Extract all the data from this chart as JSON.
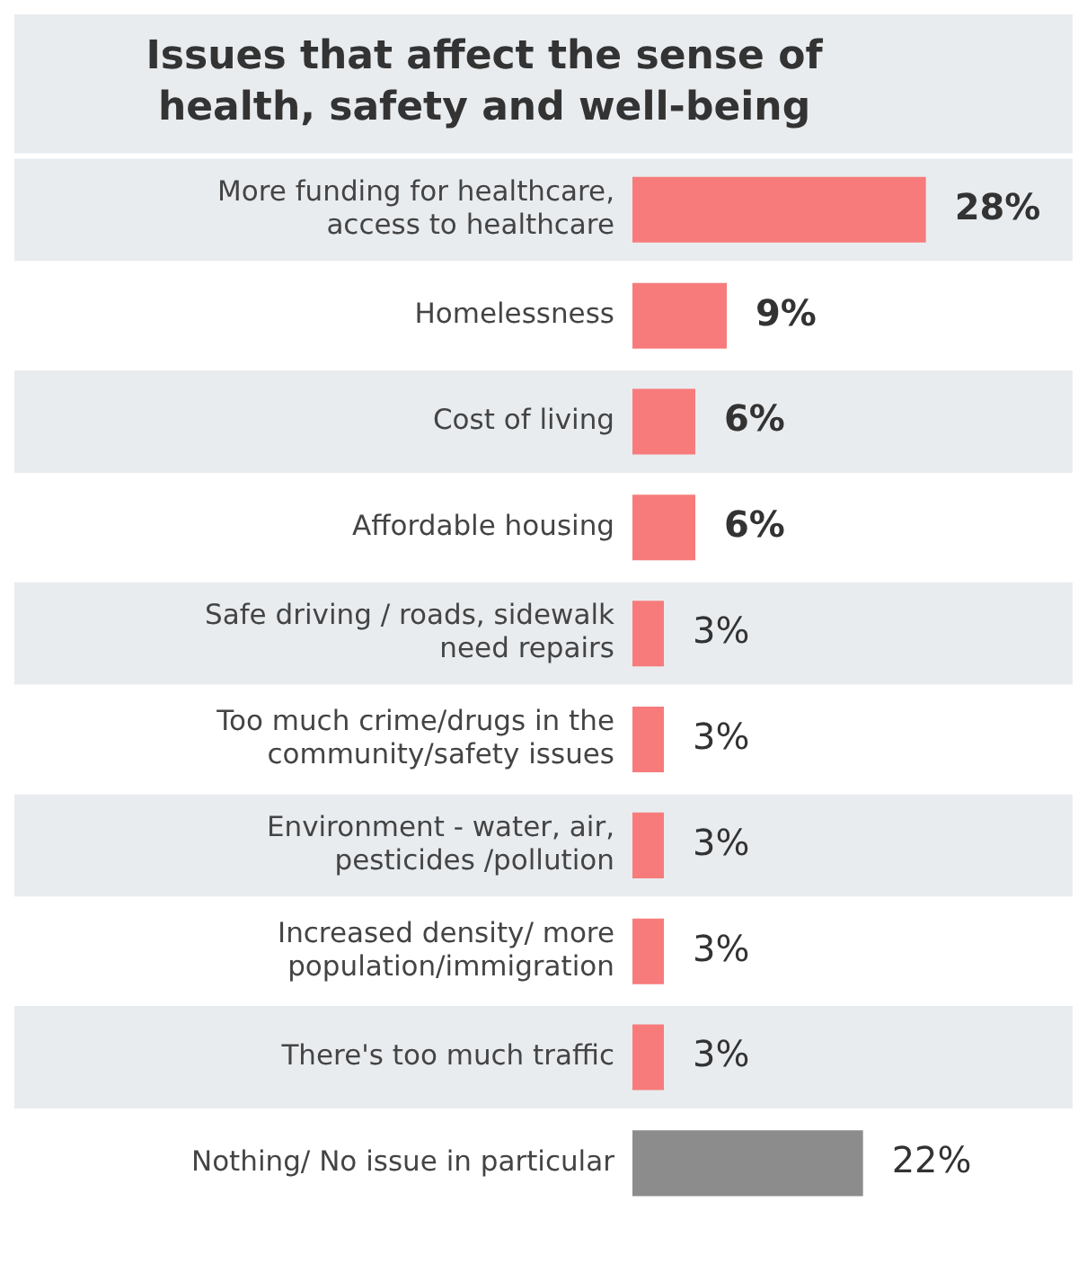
{
  "chart_data": {
    "type": "bar",
    "orientation": "horizontal",
    "title": "Issues that affect the sense of health, safety and well-being",
    "categories": [
      "More funding for healthcare, access to healthcare",
      "Homelessness",
      "Cost of living",
      "Affordable housing",
      "Safe driving / roads, sidewalk need repairs",
      "Too much crime/drugs in the community/safety issues",
      "Environment - water, air, pesticides /pollution",
      "Increased density/ more population/immigration",
      "There's too much traffic",
      "Nothing/ No issue in particular"
    ],
    "values": [
      28,
      9,
      6,
      6,
      3,
      3,
      3,
      3,
      3,
      22
    ],
    "value_labels": [
      "28%",
      "9%",
      "6%",
      "6%",
      "3%",
      "3%",
      "3%",
      "3%",
      "3%",
      "22%"
    ],
    "colors": [
      "#f77b7b",
      "#f77b7b",
      "#f77b7b",
      "#f77b7b",
      "#f77b7b",
      "#f77b7b",
      "#f77b7b",
      "#f77b7b",
      "#f77b7b",
      "#8c8c8c"
    ],
    "grid": false,
    "legend": false
  }
}
